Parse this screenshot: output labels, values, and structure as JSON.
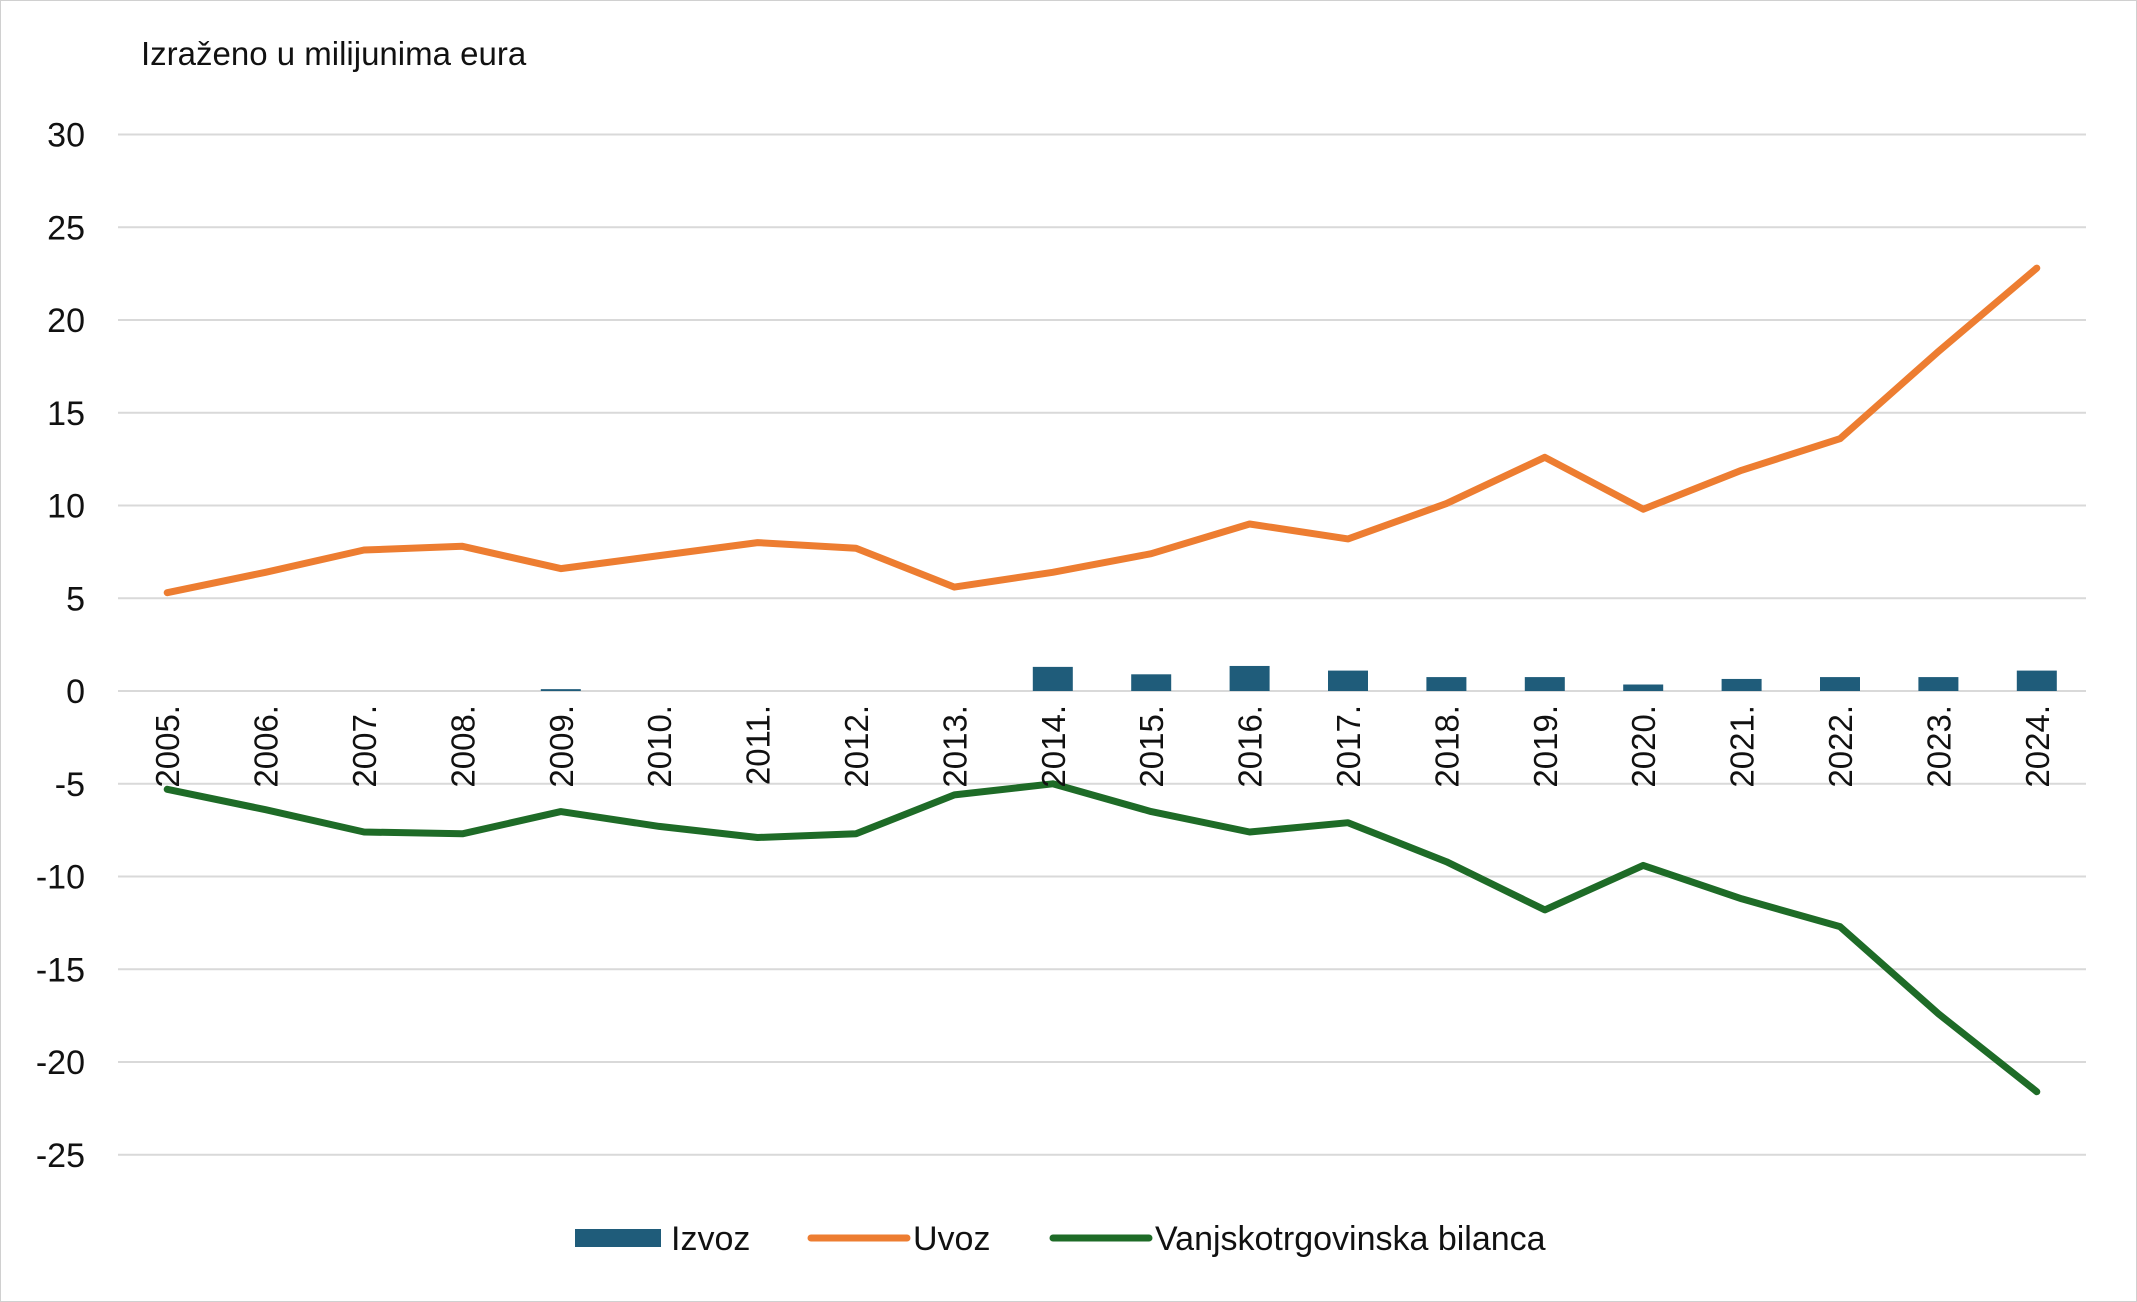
{
  "chart_data": {
    "type": "bar+line",
    "title": "",
    "ylabel": "Izraženo u milijunima eura",
    "xlabel": "",
    "ylim": [
      -25,
      30
    ],
    "yticks": [
      30,
      25,
      20,
      15,
      10,
      5,
      0,
      -5,
      -10,
      -15,
      -20,
      -25
    ],
    "grid": "horizontal",
    "legend_position": "bottom",
    "categories": [
      "2005.",
      "2006.",
      "2007.",
      "2008.",
      "2009.",
      "2010.",
      "2011.",
      "2012.",
      "2013.",
      "2014.",
      "2015.",
      "2016.",
      "2017.",
      "2018.",
      "2019.",
      "2020.",
      "2021.",
      "2022.",
      "2023.",
      "2024."
    ],
    "series": [
      {
        "name": "Izvoz",
        "type": "bar",
        "color": "#1f5c7a",
        "values": [
          0.0,
          0.0,
          0.0,
          0.0,
          0.1,
          0.0,
          0.0,
          0.0,
          0.0,
          1.3,
          0.9,
          1.35,
          1.1,
          0.75,
          0.75,
          0.35,
          0.65,
          0.75,
          0.75,
          1.1
        ]
      },
      {
        "name": "Uvoz",
        "type": "line",
        "color": "#ed7d31",
        "values": [
          5.3,
          6.4,
          7.6,
          7.8,
          6.6,
          7.3,
          8.0,
          7.7,
          5.6,
          6.4,
          7.4,
          9.0,
          8.2,
          10.1,
          12.6,
          9.8,
          11.9,
          13.6,
          18.3,
          22.8
        ]
      },
      {
        "name": "Vanjskotrgovinska bilanca",
        "type": "line",
        "color": "#1e6b27",
        "values": [
          -5.3,
          -6.4,
          -7.6,
          -7.7,
          -6.5,
          -7.3,
          -7.9,
          -7.7,
          -5.6,
          -5.0,
          -6.5,
          -7.6,
          -7.1,
          -9.2,
          -11.8,
          -9.4,
          -11.2,
          -12.7,
          -17.4,
          -21.6
        ]
      }
    ]
  }
}
